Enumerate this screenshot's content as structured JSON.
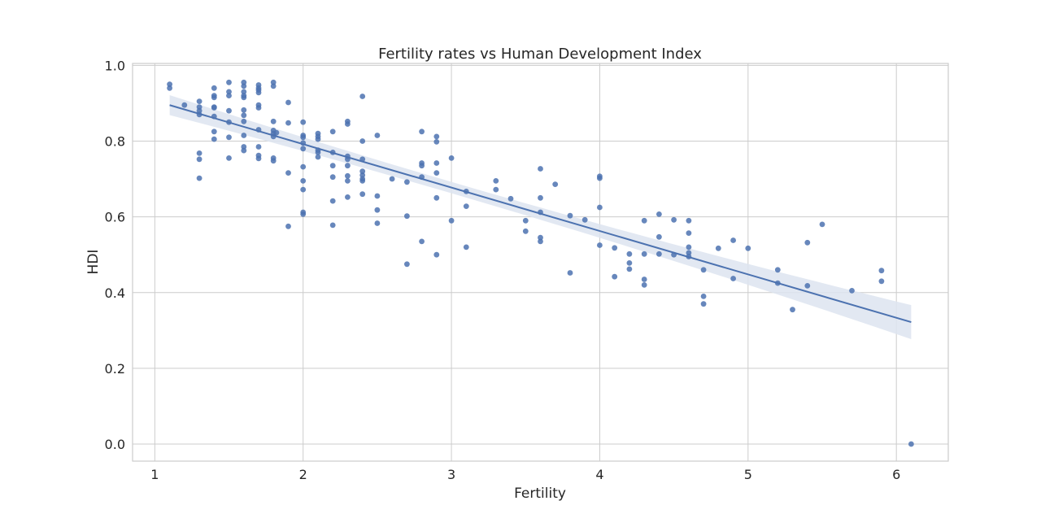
{
  "chart_data": {
    "type": "scatter",
    "title": "Fertility rates vs Human Development Index",
    "xlabel": "Fertility",
    "ylabel": "HDI",
    "xlim": [
      0.85,
      6.35
    ],
    "ylim": [
      -0.045,
      1.005
    ],
    "xticks": [
      1,
      2,
      3,
      4,
      5,
      6
    ],
    "yticks": [
      0.0,
      0.2,
      0.4,
      0.6,
      0.8,
      1.0
    ],
    "xtick_labels": [
      "1",
      "2",
      "3",
      "4",
      "5",
      "6"
    ],
    "ytick_labels": [
      "0.0",
      "0.2",
      "0.4",
      "0.6",
      "0.8",
      "1.0"
    ],
    "grid": true,
    "colors": {
      "points": "#4c72b0",
      "line": "#4c72b0",
      "band": "#dde4f0",
      "grid": "#cccccc",
      "spine": "#cccccc"
    },
    "regression": {
      "x": [
        1.1,
        6.1
      ],
      "y": [
        0.895,
        0.322
      ],
      "ci_half_width": [
        0.015,
        0.045
      ]
    },
    "points": [
      [
        1.1,
        0.95
      ],
      [
        1.1,
        0.94
      ],
      [
        1.2,
        0.895
      ],
      [
        1.3,
        0.905
      ],
      [
        1.3,
        0.89
      ],
      [
        1.3,
        0.88
      ],
      [
        1.3,
        0.87
      ],
      [
        1.3,
        0.768
      ],
      [
        1.3,
        0.752
      ],
      [
        1.3,
        0.702
      ],
      [
        1.4,
        0.94
      ],
      [
        1.4,
        0.92
      ],
      [
        1.4,
        0.915
      ],
      [
        1.4,
        0.89
      ],
      [
        1.4,
        0.888
      ],
      [
        1.4,
        0.865
      ],
      [
        1.4,
        0.825
      ],
      [
        1.4,
        0.805
      ],
      [
        1.5,
        0.955
      ],
      [
        1.5,
        0.93
      ],
      [
        1.5,
        0.92
      ],
      [
        1.5,
        0.88
      ],
      [
        1.5,
        0.85
      ],
      [
        1.5,
        0.81
      ],
      [
        1.5,
        0.755
      ],
      [
        1.6,
        0.955
      ],
      [
        1.6,
        0.945
      ],
      [
        1.6,
        0.93
      ],
      [
        1.6,
        0.92
      ],
      [
        1.6,
        0.915
      ],
      [
        1.6,
        0.882
      ],
      [
        1.6,
        0.868
      ],
      [
        1.6,
        0.852
      ],
      [
        1.6,
        0.815
      ],
      [
        1.6,
        0.785
      ],
      [
        1.6,
        0.775
      ],
      [
        1.7,
        0.948
      ],
      [
        1.7,
        0.94
      ],
      [
        1.7,
        0.935
      ],
      [
        1.7,
        0.928
      ],
      [
        1.7,
        0.895
      ],
      [
        1.7,
        0.888
      ],
      [
        1.7,
        0.83
      ],
      [
        1.7,
        0.785
      ],
      [
        1.7,
        0.762
      ],
      [
        1.7,
        0.754
      ],
      [
        1.8,
        0.955
      ],
      [
        1.8,
        0.945
      ],
      [
        1.8,
        0.852
      ],
      [
        1.8,
        0.828
      ],
      [
        1.8,
        0.82
      ],
      [
        1.8,
        0.812
      ],
      [
        1.8,
        0.755
      ],
      [
        1.8,
        0.748
      ],
      [
        1.82,
        0.822
      ],
      [
        1.9,
        0.902
      ],
      [
        1.9,
        0.848
      ],
      [
        1.9,
        0.716
      ],
      [
        1.9,
        0.575
      ],
      [
        2.0,
        0.85
      ],
      [
        2.0,
        0.815
      ],
      [
        2.0,
        0.81
      ],
      [
        2.0,
        0.795
      ],
      [
        2.0,
        0.78
      ],
      [
        2.0,
        0.732
      ],
      [
        2.0,
        0.695
      ],
      [
        2.0,
        0.672
      ],
      [
        2.0,
        0.612
      ],
      [
        2.0,
        0.607
      ],
      [
        2.1,
        0.82
      ],
      [
        2.1,
        0.812
      ],
      [
        2.1,
        0.805
      ],
      [
        2.1,
        0.776
      ],
      [
        2.1,
        0.77
      ],
      [
        2.1,
        0.758
      ],
      [
        2.2,
        0.825
      ],
      [
        2.2,
        0.77
      ],
      [
        2.2,
        0.735
      ],
      [
        2.2,
        0.705
      ],
      [
        2.2,
        0.642
      ],
      [
        2.2,
        0.578
      ],
      [
        2.3,
        0.852
      ],
      [
        2.3,
        0.845
      ],
      [
        2.3,
        0.76
      ],
      [
        2.3,
        0.752
      ],
      [
        2.3,
        0.735
      ],
      [
        2.3,
        0.708
      ],
      [
        2.3,
        0.695
      ],
      [
        2.3,
        0.652
      ],
      [
        2.4,
        0.918
      ],
      [
        2.4,
        0.8
      ],
      [
        2.4,
        0.752
      ],
      [
        2.4,
        0.72
      ],
      [
        2.4,
        0.71
      ],
      [
        2.4,
        0.7
      ],
      [
        2.4,
        0.695
      ],
      [
        2.4,
        0.66
      ],
      [
        2.5,
        0.815
      ],
      [
        2.5,
        0.655
      ],
      [
        2.5,
        0.618
      ],
      [
        2.5,
        0.583
      ],
      [
        2.6,
        0.7
      ],
      [
        2.7,
        0.692
      ],
      [
        2.7,
        0.602
      ],
      [
        2.7,
        0.475
      ],
      [
        2.8,
        0.825
      ],
      [
        2.8,
        0.742
      ],
      [
        2.8,
        0.735
      ],
      [
        2.8,
        0.705
      ],
      [
        2.8,
        0.535
      ],
      [
        2.9,
        0.812
      ],
      [
        2.9,
        0.798
      ],
      [
        2.9,
        0.742
      ],
      [
        2.9,
        0.716
      ],
      [
        2.9,
        0.65
      ],
      [
        2.9,
        0.5
      ],
      [
        3.0,
        0.755
      ],
      [
        3.0,
        0.59
      ],
      [
        3.1,
        0.667
      ],
      [
        3.1,
        0.628
      ],
      [
        3.1,
        0.52
      ],
      [
        3.3,
        0.695
      ],
      [
        3.3,
        0.672
      ],
      [
        3.4,
        0.648
      ],
      [
        3.5,
        0.59
      ],
      [
        3.5,
        0.562
      ],
      [
        3.6,
        0.727
      ],
      [
        3.6,
        0.65
      ],
      [
        3.6,
        0.612
      ],
      [
        3.6,
        0.545
      ],
      [
        3.6,
        0.535
      ],
      [
        3.7,
        0.686
      ],
      [
        3.8,
        0.603
      ],
      [
        3.8,
        0.452
      ],
      [
        3.9,
        0.592
      ],
      [
        4.0,
        0.707
      ],
      [
        4.0,
        0.702
      ],
      [
        4.0,
        0.625
      ],
      [
        4.0,
        0.525
      ],
      [
        4.1,
        0.518
      ],
      [
        4.1,
        0.442
      ],
      [
        4.2,
        0.502
      ],
      [
        4.2,
        0.478
      ],
      [
        4.2,
        0.462
      ],
      [
        4.3,
        0.59
      ],
      [
        4.3,
        0.502
      ],
      [
        4.3,
        0.435
      ],
      [
        4.3,
        0.42
      ],
      [
        4.4,
        0.607
      ],
      [
        4.4,
        0.547
      ],
      [
        4.4,
        0.502
      ],
      [
        4.5,
        0.592
      ],
      [
        4.5,
        0.5
      ],
      [
        4.6,
        0.59
      ],
      [
        4.6,
        0.557
      ],
      [
        4.6,
        0.52
      ],
      [
        4.6,
        0.505
      ],
      [
        4.6,
        0.495
      ],
      [
        4.7,
        0.46
      ],
      [
        4.7,
        0.39
      ],
      [
        4.7,
        0.37
      ],
      [
        4.8,
        0.517
      ],
      [
        4.9,
        0.538
      ],
      [
        4.9,
        0.437
      ],
      [
        5.0,
        0.517
      ],
      [
        5.2,
        0.46
      ],
      [
        5.2,
        0.425
      ],
      [
        5.3,
        0.355
      ],
      [
        5.4,
        0.532
      ],
      [
        5.4,
        0.418
      ],
      [
        5.5,
        0.58
      ],
      [
        5.7,
        0.405
      ],
      [
        5.9,
        0.458
      ],
      [
        5.9,
        0.43
      ],
      [
        6.1,
        0.0
      ]
    ]
  }
}
